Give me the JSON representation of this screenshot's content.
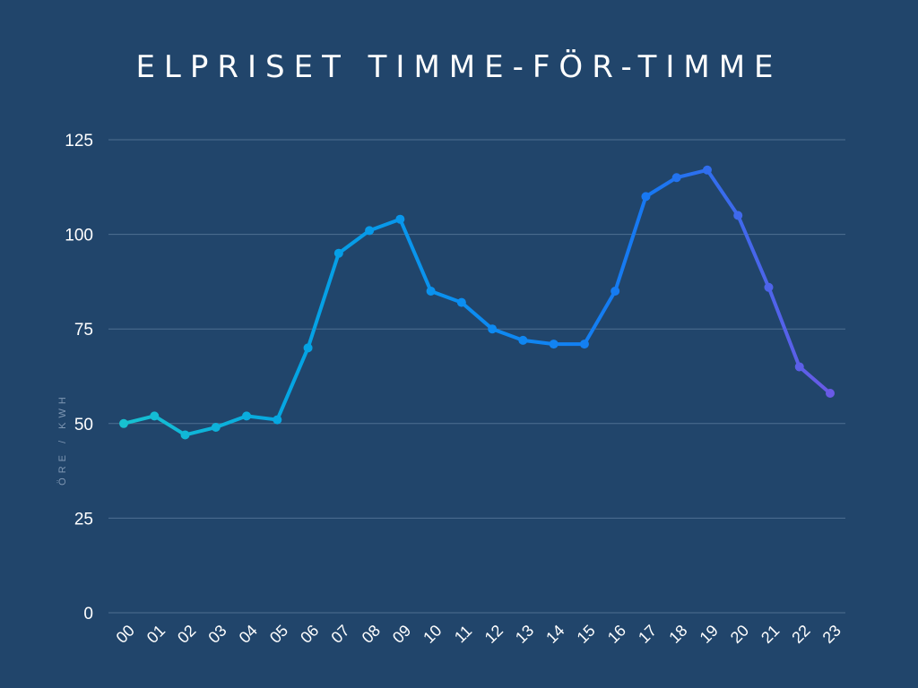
{
  "chart_data": {
    "type": "line",
    "title": "ELPRISET TIMME-FÖR-TIMME",
    "xlabel": "",
    "ylabel": "ÖRE / KWH",
    "categories": [
      "00",
      "01",
      "02",
      "03",
      "04",
      "05",
      "06",
      "07",
      "08",
      "09",
      "10",
      "11",
      "12",
      "13",
      "14",
      "15",
      "16",
      "17",
      "18",
      "19",
      "20",
      "21",
      "22",
      "23"
    ],
    "series": [
      {
        "values": [
          50,
          52,
          47,
          49,
          52,
          51,
          70,
          95,
          101,
          104,
          85,
          82,
          75,
          72,
          71,
          71,
          85,
          110,
          115,
          117,
          105,
          86,
          65,
          58
        ]
      }
    ],
    "ylim": [
      0,
      125
    ],
    "yticks": [
      0,
      25,
      50,
      75,
      100,
      125
    ],
    "grid": true,
    "colors": {
      "background": "#21456b",
      "gradient": [
        "#17c1d0",
        "#04a4e4",
        "#0c8cf2",
        "#1877f2",
        "#6a5ae6"
      ],
      "gridline": "#4f6f92",
      "text": "#ffffff",
      "ylabel": "#7f97b3"
    }
  }
}
